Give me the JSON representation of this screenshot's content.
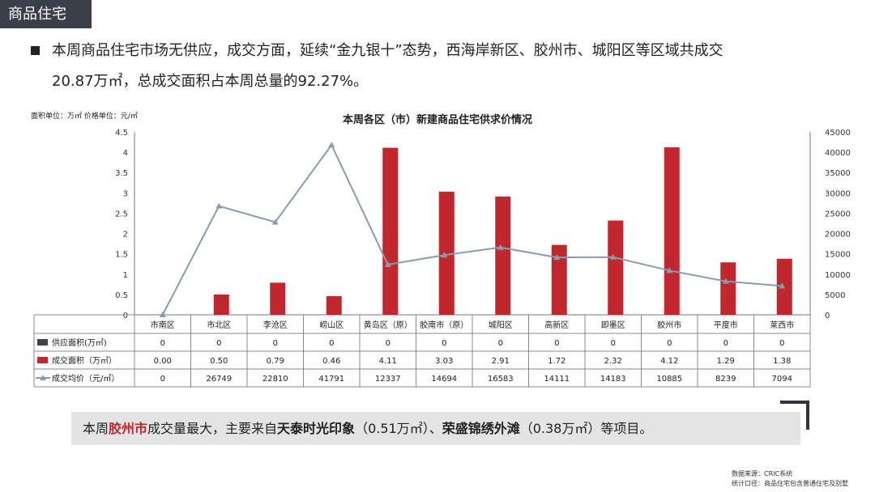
{
  "section_tag": "商品住宅",
  "bullet": {
    "line1": "本周商品住宅市场无供应，成交方面，延续“金九银十”态势，西海岸新区、胶州市、城阳区等区域共成交",
    "line2": "20.87万㎡，总成交面积占本周总量的92.27%。"
  },
  "units_note": "面积单位：万㎡  价格单位：元/㎡",
  "summary": {
    "prefix": "本周",
    "highlight": "胶州市",
    "mid1": "成交量最大，主要来自",
    "proj1": "天泰时光印象",
    "mid2": "（0.51万㎡）、",
    "proj2": "荣盛锦绣外滩",
    "mid3": "（0.38万㎡）等项目。"
  },
  "footer": {
    "source": "数据来源：CRIC系统",
    "scope": "统计口径：商品住宅包含普通住宅及别墅"
  },
  "colors": {
    "supply": "#3d4450",
    "deal": "#c0282d",
    "price": "#8a9bb0",
    "grid": "#999999"
  },
  "chart_data": {
    "type": "bar",
    "title": "本周各区（市）新建商品住宅供求价情况",
    "categories": [
      "市南区",
      "市北区",
      "李沧区",
      "崂山区",
      "黄岛区（原）",
      "胶南市（原）",
      "城阳区",
      "高新区",
      "即墨区",
      "胶州市",
      "平度市",
      "莱西市"
    ],
    "ylim_left": [
      0,
      4.5
    ],
    "yticks_left": [
      "4.5",
      "4",
      "3.5",
      "3",
      "2.5",
      "2",
      "1.5",
      "1",
      "0.5",
      "0"
    ],
    "ylim_right": [
      0,
      45000
    ],
    "yticks_right": [
      "45000",
      "40000",
      "35000",
      "30000",
      "25000",
      "20000",
      "15000",
      "10000",
      "5000",
      "0"
    ],
    "series": [
      {
        "name": "供应面积(万㎡)",
        "kind": "bar",
        "axis": "left",
        "values": [
          0,
          0,
          0,
          0,
          0,
          0,
          0,
          0,
          0,
          0,
          0,
          0
        ],
        "labels": [
          "0",
          "0",
          "0",
          "0",
          "0",
          "0",
          "0",
          "0",
          "0",
          "0",
          "0",
          "0"
        ]
      },
      {
        "name": "成交面积（万㎡）",
        "kind": "bar",
        "axis": "left",
        "values": [
          0.0,
          0.5,
          0.79,
          0.46,
          4.11,
          3.03,
          2.91,
          1.72,
          2.32,
          4.12,
          1.29,
          1.38
        ],
        "labels": [
          "0.00",
          "0.50",
          "0.79",
          "0.46",
          "4.11",
          "3.03",
          "2.91",
          "1.72",
          "2.32",
          "4.12",
          "1.29",
          "1.38"
        ]
      },
      {
        "name": "成交均价（元/㎡）",
        "kind": "line",
        "axis": "right",
        "values": [
          0,
          26749,
          22810,
          41791,
          12337,
          14694,
          16583,
          14111,
          14183,
          10885,
          8239,
          7094
        ],
        "labels": [
          "0",
          "26749",
          "22810",
          "41791",
          "12337",
          "14694",
          "16583",
          "14111",
          "14183",
          "10885",
          "8239",
          "7094"
        ]
      }
    ]
  }
}
